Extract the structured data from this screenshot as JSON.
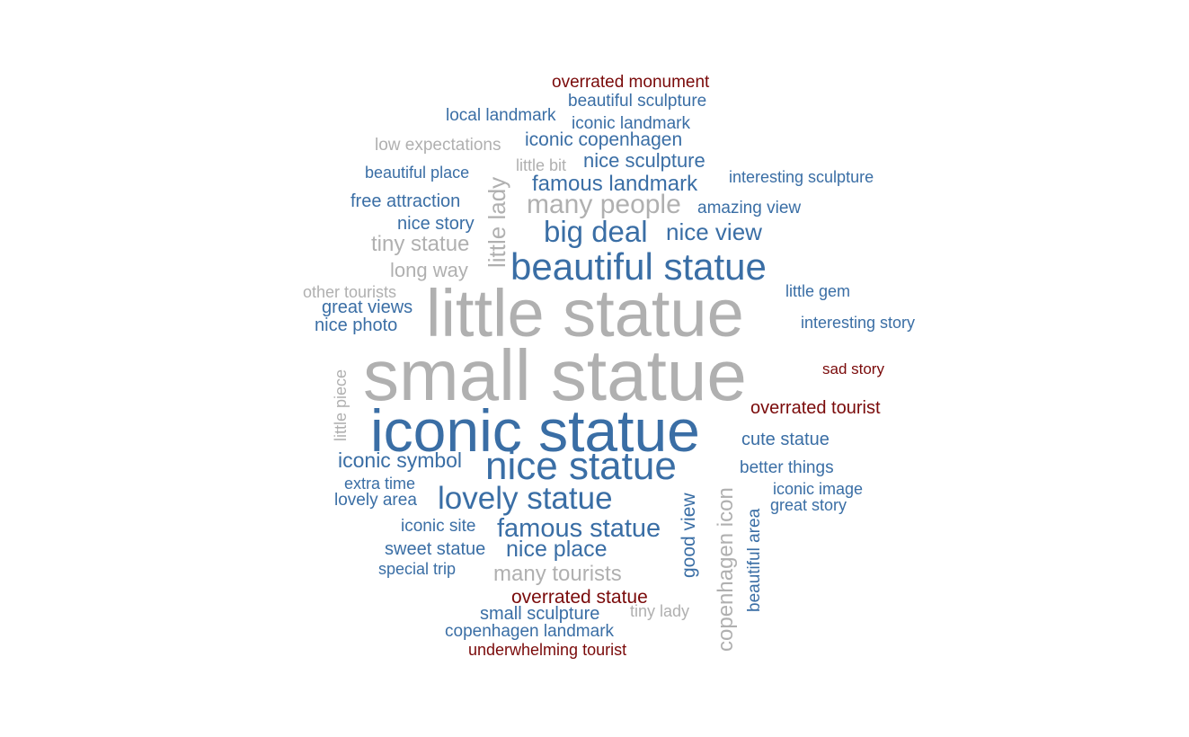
{
  "colors": {
    "blue": "#3a6ea5",
    "grey": "#b0b0b0",
    "red": "#7a0a0a",
    "background": "#ffffff"
  },
  "words": [
    {
      "text": "overrated monument",
      "color": "red",
      "orientation": "horizontal"
    },
    {
      "text": "beautiful sculpture",
      "color": "blue",
      "orientation": "horizontal"
    },
    {
      "text": "local landmark",
      "color": "blue",
      "orientation": "horizontal"
    },
    {
      "text": "iconic landmark",
      "color": "blue",
      "orientation": "horizontal"
    },
    {
      "text": "iconic copenhagen",
      "color": "blue",
      "orientation": "horizontal"
    },
    {
      "text": "low expectations",
      "color": "grey",
      "orientation": "horizontal"
    },
    {
      "text": "little bit",
      "color": "grey",
      "orientation": "horizontal"
    },
    {
      "text": "nice sculpture",
      "color": "blue",
      "orientation": "horizontal"
    },
    {
      "text": "beautiful place",
      "color": "blue",
      "orientation": "horizontal"
    },
    {
      "text": "interesting sculpture",
      "color": "blue",
      "orientation": "horizontal"
    },
    {
      "text": "famous landmark",
      "color": "blue",
      "orientation": "horizontal"
    },
    {
      "text": "little lady",
      "color": "grey",
      "orientation": "vertical"
    },
    {
      "text": "free attraction",
      "color": "blue",
      "orientation": "horizontal"
    },
    {
      "text": "many people",
      "color": "grey",
      "orientation": "horizontal"
    },
    {
      "text": "amazing view",
      "color": "blue",
      "orientation": "horizontal"
    },
    {
      "text": "nice story",
      "color": "blue",
      "orientation": "horizontal"
    },
    {
      "text": "big deal",
      "color": "blue",
      "orientation": "horizontal"
    },
    {
      "text": "nice view",
      "color": "blue",
      "orientation": "horizontal"
    },
    {
      "text": "tiny statue",
      "color": "grey",
      "orientation": "horizontal"
    },
    {
      "text": "beautiful statue",
      "color": "blue",
      "orientation": "horizontal"
    },
    {
      "text": "long way",
      "color": "grey",
      "orientation": "horizontal"
    },
    {
      "text": "other tourists",
      "color": "grey",
      "orientation": "horizontal"
    },
    {
      "text": "little gem",
      "color": "blue",
      "orientation": "horizontal"
    },
    {
      "text": "little statue",
      "color": "grey",
      "orientation": "horizontal"
    },
    {
      "text": "great views",
      "color": "blue",
      "orientation": "horizontal"
    },
    {
      "text": "nice photo",
      "color": "blue",
      "orientation": "horizontal"
    },
    {
      "text": "interesting story",
      "color": "blue",
      "orientation": "horizontal"
    },
    {
      "text": "small statue",
      "color": "grey",
      "orientation": "horizontal"
    },
    {
      "text": "little piece",
      "color": "grey",
      "orientation": "vertical"
    },
    {
      "text": "sad story",
      "color": "red",
      "orientation": "horizontal"
    },
    {
      "text": "overrated tourist",
      "color": "red",
      "orientation": "horizontal"
    },
    {
      "text": "iconic statue",
      "color": "blue",
      "orientation": "horizontal"
    },
    {
      "text": "cute statue",
      "color": "blue",
      "orientation": "horizontal"
    },
    {
      "text": "iconic symbol",
      "color": "blue",
      "orientation": "horizontal"
    },
    {
      "text": "nice statue",
      "color": "blue",
      "orientation": "horizontal"
    },
    {
      "text": "better things",
      "color": "blue",
      "orientation": "horizontal"
    },
    {
      "text": "copenhagen icon",
      "color": "grey",
      "orientation": "vertical"
    },
    {
      "text": "extra time",
      "color": "blue",
      "orientation": "horizontal"
    },
    {
      "text": "iconic image",
      "color": "blue",
      "orientation": "horizontal"
    },
    {
      "text": "lovely area",
      "color": "blue",
      "orientation": "horizontal"
    },
    {
      "text": "lovely statue",
      "color": "blue",
      "orientation": "horizontal"
    },
    {
      "text": "good view",
      "color": "blue",
      "orientation": "vertical"
    },
    {
      "text": "beautiful area",
      "color": "blue",
      "orientation": "vertical"
    },
    {
      "text": "great story",
      "color": "blue",
      "orientation": "horizontal"
    },
    {
      "text": "iconic site",
      "color": "blue",
      "orientation": "horizontal"
    },
    {
      "text": "famous statue",
      "color": "blue",
      "orientation": "horizontal"
    },
    {
      "text": "sweet statue",
      "color": "blue",
      "orientation": "horizontal"
    },
    {
      "text": "nice place",
      "color": "blue",
      "orientation": "horizontal"
    },
    {
      "text": "special trip",
      "color": "blue",
      "orientation": "horizontal"
    },
    {
      "text": "many tourists",
      "color": "grey",
      "orientation": "horizontal"
    },
    {
      "text": "overrated statue",
      "color": "red",
      "orientation": "horizontal"
    },
    {
      "text": "small sculpture",
      "color": "blue",
      "orientation": "horizontal"
    },
    {
      "text": "tiny lady",
      "color": "grey",
      "orientation": "horizontal"
    },
    {
      "text": "copenhagen landmark",
      "color": "blue",
      "orientation": "horizontal"
    },
    {
      "text": "underwhelming tourist",
      "color": "red",
      "orientation": "horizontal"
    }
  ]
}
